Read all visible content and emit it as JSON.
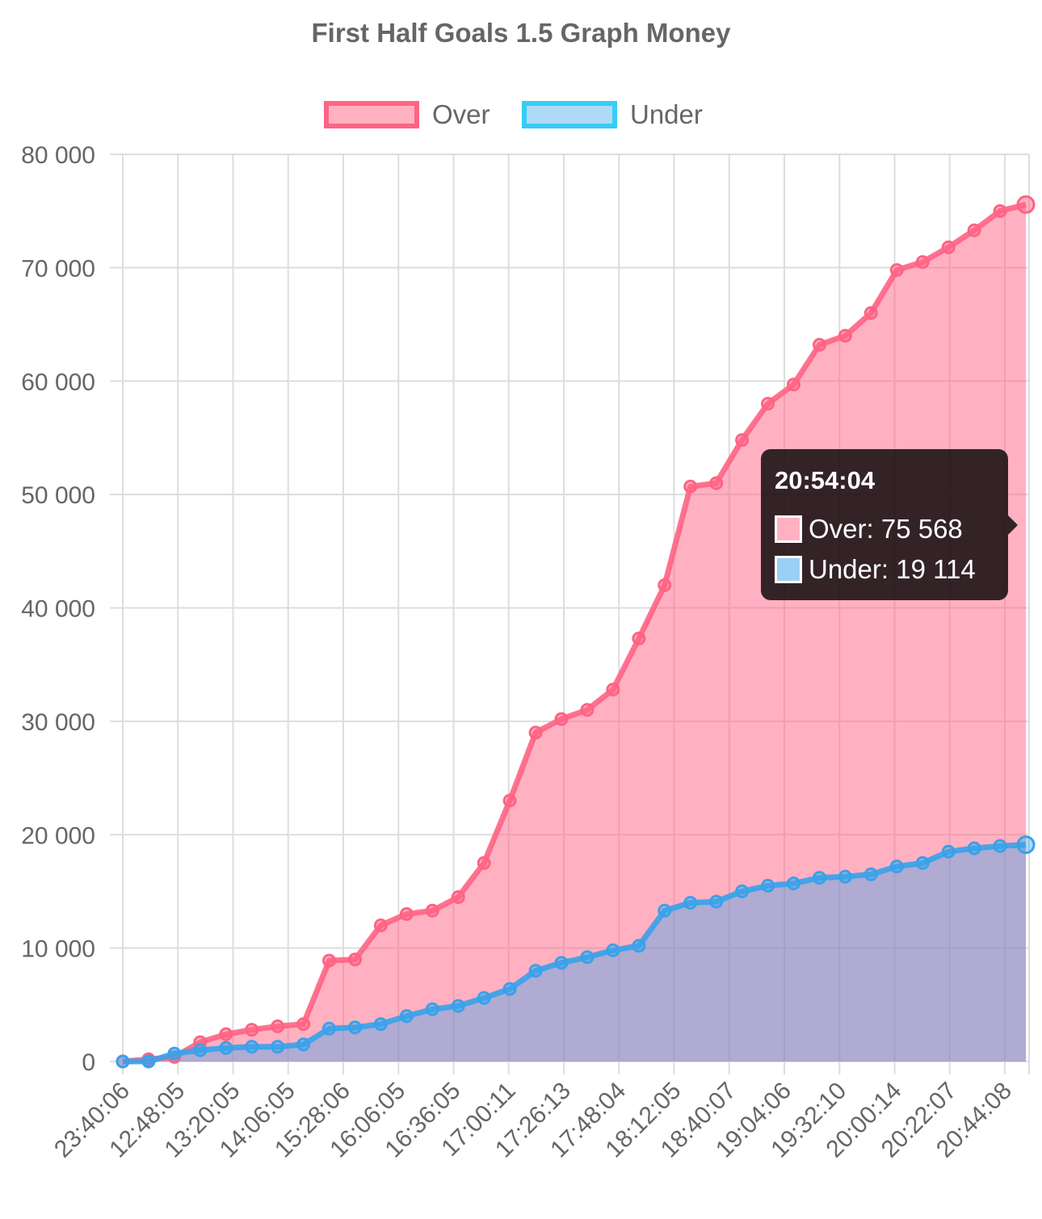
{
  "chart_data": {
    "type": "area",
    "title": "First Half Goals 1.5 Graph Money",
    "xlabel": "",
    "ylabel": "",
    "ylim": [
      0,
      80000
    ],
    "yticks": [
      0,
      10000,
      20000,
      30000,
      40000,
      50000,
      60000,
      70000,
      80000
    ],
    "ytick_labels": [
      "0",
      "10 000",
      "20 000",
      "30 000",
      "40 000",
      "50 000",
      "60 000",
      "70 000",
      "80 000"
    ],
    "x_tick_labels": [
      "23:40:06",
      "12:48:05",
      "13:20:05",
      "14:06:05",
      "15:28:06",
      "16:06:05",
      "16:36:05",
      "17:00:11",
      "17:26:13",
      "17:48:04",
      "18:12:05",
      "18:40:07",
      "19:04:06",
      "19:32:10",
      "20:00:14",
      "20:22:07",
      "20:44:08"
    ],
    "x_last": "20:54:04",
    "grid": true,
    "legend_position": "top",
    "series": [
      {
        "name": "Over",
        "color": "#ff6384",
        "fill": "rgba(255,99,132,0.5)",
        "values": [
          0,
          200,
          400,
          1700,
          2400,
          2800,
          3100,
          3300,
          8900,
          9000,
          12000,
          13000,
          13300,
          14500,
          17500,
          23000,
          29000,
          30200,
          31000,
          32800,
          37300,
          42000,
          50700,
          51000,
          54800,
          58000,
          59700,
          63200,
          64000,
          66000,
          69800,
          70500,
          71800,
          73300,
          75000,
          75568
        ]
      },
      {
        "name": "Under",
        "color": "#36a2eb",
        "fill": "rgba(54,162,235,0.4)",
        "values": [
          0,
          0,
          700,
          1000,
          1200,
          1300,
          1300,
          1500,
          2900,
          3000,
          3300,
          4000,
          4600,
          4900,
          5600,
          6400,
          8000,
          8700,
          9200,
          9800,
          10200,
          13300,
          14000,
          14100,
          15000,
          15500,
          15700,
          16200,
          16300,
          16500,
          17200,
          17500,
          18500,
          18800,
          19000,
          19114
        ]
      }
    ]
  },
  "legend": {
    "over_label": "Over",
    "under_label": "Under"
  },
  "tooltip": {
    "title": "20:54:04",
    "over_text": "Over: 75 568",
    "under_text": "Under: 19 114",
    "over_color": "#ffb1c1",
    "under_color": "#9ad0f5"
  }
}
